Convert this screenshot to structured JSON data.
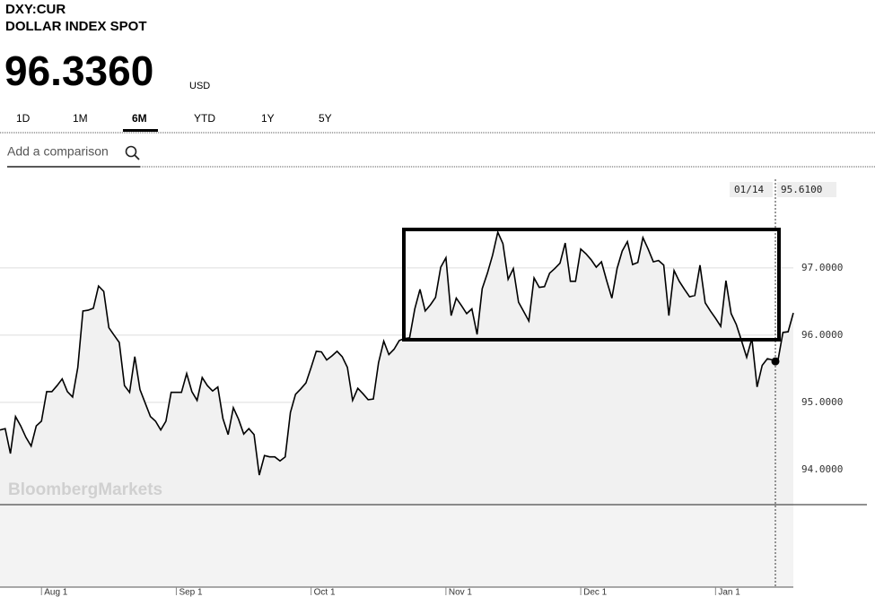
{
  "header": {
    "ticker": "DXY:CUR",
    "name": "DOLLAR INDEX SPOT",
    "price": "96.3360",
    "currency": "USD"
  },
  "tabs": [
    "1D",
    "1M",
    "6M",
    "YTD",
    "1Y",
    "5Y"
  ],
  "active_tab": 2,
  "comparison_placeholder": "Add a comparison",
  "watermark": "BloombergMarkets",
  "crosshair": {
    "label": "01/14",
    "value": {
      "value": 95.61,
      "label": "95.6100"
    }
  },
  "chart_data": {
    "type": "line",
    "categories": [
      null,
      null,
      null,
      null,
      null,
      null,
      null,
      null,
      "Aug 1",
      null,
      null,
      null,
      null,
      null,
      null,
      null,
      null,
      null,
      null,
      null,
      null,
      null,
      null,
      null,
      null,
      null,
      null,
      null,
      null,
      null,
      null,
      null,
      null,
      null,
      "Sep 1",
      null,
      null,
      null,
      null,
      null,
      null,
      null,
      null,
      null,
      null,
      null,
      null,
      null,
      null,
      null,
      null,
      null,
      null,
      null,
      null,
      null,
      null,
      null,
      null,
      null,
      "Oct 1",
      null,
      null,
      null,
      null,
      null,
      null,
      null,
      null,
      null,
      null,
      null,
      null,
      null,
      null,
      null,
      null,
      null,
      null,
      null,
      null,
      null,
      null,
      null,
      null,
      null,
      "Nov 1",
      null,
      null,
      null,
      null,
      null,
      null,
      null,
      null,
      null,
      null,
      null,
      null,
      null,
      null,
      null,
      null,
      null,
      null,
      null,
      null,
      null,
      null,
      null,
      null,
      null,
      "Dec 1",
      null,
      null,
      null,
      null,
      null,
      null,
      null,
      null,
      null,
      null,
      null,
      null,
      null,
      null,
      null,
      null,
      null,
      null,
      null,
      null,
      null,
      null,
      null,
      null,
      null,
      "Jan 1",
      null,
      null,
      null,
      null,
      null,
      null,
      null,
      null,
      null,
      null,
      null,
      null,
      null,
      null,
      null
    ],
    "series": [
      {
        "name": "DXY:CUR",
        "color": "#000000",
        "values": [
          94.59,
          94.61,
          94.24,
          94.79,
          94.65,
          94.48,
          94.35,
          94.65,
          94.72,
          95.16,
          95.16,
          95.25,
          95.35,
          95.16,
          95.08,
          95.52,
          96.36,
          96.37,
          96.4,
          96.73,
          96.65,
          96.11,
          96.0,
          95.89,
          95.25,
          95.15,
          95.68,
          95.19,
          94.99,
          94.79,
          94.72,
          94.59,
          94.72,
          95.15,
          95.15,
          95.15,
          95.43,
          95.16,
          95.03,
          95.37,
          95.25,
          95.17,
          95.23,
          94.76,
          94.52,
          94.92,
          94.75,
          94.53,
          94.61,
          94.52,
          93.92,
          94.21,
          94.19,
          94.19,
          94.13,
          94.19,
          94.85,
          95.12,
          95.2,
          95.29,
          95.52,
          95.76,
          95.75,
          95.63,
          95.69,
          95.76,
          95.68,
          95.52,
          95.03,
          95.21,
          95.13,
          95.04,
          95.05,
          95.59,
          95.91,
          95.71,
          95.79,
          95.92,
          95.95,
          95.96,
          96.39,
          96.68,
          96.36,
          96.45,
          96.56,
          97.01,
          97.15,
          96.29,
          96.55,
          96.44,
          96.32,
          96.39,
          96.01,
          96.69,
          96.92,
          97.19,
          97.53,
          97.36,
          96.83,
          96.99,
          96.49,
          96.35,
          96.21,
          96.85,
          96.71,
          96.72,
          96.92,
          96.99,
          97.07,
          97.37,
          96.8,
          96.8,
          97.28,
          97.21,
          97.12,
          97.01,
          97.09,
          96.81,
          96.55,
          96.99,
          97.25,
          97.39,
          97.05,
          97.08,
          97.45,
          97.28,
          97.09,
          97.11,
          97.04,
          96.29,
          96.96,
          96.8,
          96.68,
          96.57,
          96.59,
          97.04,
          96.48,
          96.36,
          96.25,
          96.13,
          96.81,
          96.32,
          96.16,
          95.92,
          95.67,
          95.95,
          95.23,
          95.55,
          95.65,
          95.63,
          95.61,
          96.04,
          96.05,
          96.33
        ]
      }
    ],
    "ylim": [
      93.48,
      98.45
    ],
    "yticks": [
      {
        "value": 94,
        "label": "94.0000"
      },
      {
        "value": 95,
        "label": "95.0000"
      },
      {
        "value": 96,
        "label": "96.0000"
      },
      {
        "value": 97,
        "label": "97.0000"
      }
    ],
    "grid": true
  }
}
